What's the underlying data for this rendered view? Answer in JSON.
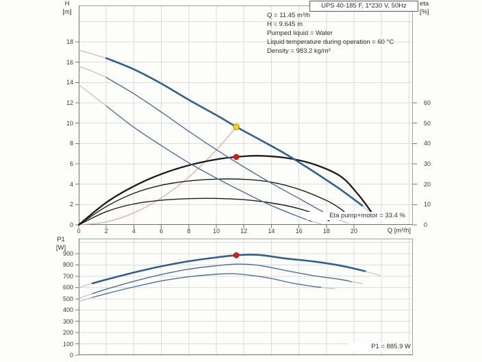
{
  "title_box": "UPS 40-185 F, 1*230 V, 50Hz",
  "info_lines": [
    "Q = 11.45 m³/h",
    "H = 9.645 m",
    "Pumped liquid = Water",
    "Liquid temperature during operation = 60 °C",
    "Density = 983.2 kg/m³"
  ],
  "axis_labels": {
    "h_name": "H",
    "h_unit": "[m]",
    "eta_name": "eta",
    "eta_unit": "[%]",
    "q_label": "Q [m³/h]",
    "p1_name": "P1",
    "p1_unit": "[W]"
  },
  "annotations": {
    "eta": "Eta pump+motor = 33.4 %",
    "p1": "P1 = 885.9 W"
  },
  "duty_point": {
    "q_m3h": 11.45,
    "h_m": 9.645,
    "eta_pct": 33.4,
    "p1_w": 885.9
  },
  "colors": {
    "grid": "#d8dce0",
    "frame": "#9aa0a4",
    "axis": "#6a6f73",
    "tick": "#777777",
    "curve_blue_thick": "#2e618f",
    "curve_blue_thin": "#47719c",
    "curve_black": "#1b1b1b",
    "system_red": "#e59598",
    "tail_gray": "#b7bdc2",
    "duty_yellow": "#ffd400",
    "duty_red": "#ee1312"
  },
  "chart_data": [
    {
      "id": "top",
      "type": "line",
      "x_label": "Q [m³/h]",
      "y_label": "H [m]",
      "y2_label": "eta [%]",
      "xlim": [
        0,
        24.28
      ],
      "ylim": [
        0,
        21.58
      ],
      "y2lim": [
        0,
        107.9
      ],
      "x_ticks": [
        0,
        2,
        4,
        6,
        8,
        10,
        12,
        14,
        16,
        18,
        20
      ],
      "x_grid": [
        2,
        4,
        6,
        8,
        10,
        12,
        14,
        16,
        18,
        20,
        22,
        24
      ],
      "y_ticks": [
        0,
        2,
        4,
        6,
        8,
        10,
        12,
        14,
        16,
        18
      ],
      "y_grid": [
        2,
        4,
        6,
        8,
        10,
        12,
        14,
        16,
        18,
        20
      ],
      "y2_ticks": [
        0,
        10,
        20,
        30,
        40,
        50,
        60
      ],
      "series": [
        {
          "name": "head-curve-speed3-tail-start",
          "color": "#b7bdc2",
          "width": 1.2,
          "axis": "y",
          "points": [
            [
              0,
              17.2
            ],
            [
              1,
              16.8
            ],
            [
              2,
              16.4
            ]
          ]
        },
        {
          "name": "head-curve-speed2-tail-start",
          "color": "#b7bdc2",
          "width": 1.1,
          "axis": "y",
          "points": [
            [
              0,
              15.6
            ],
            [
              1,
              15.1
            ],
            [
              2,
              14.5
            ]
          ]
        },
        {
          "name": "head-curve-speed1-tail-start",
          "color": "#b7bdc2",
          "width": 1.1,
          "axis": "y",
          "points": [
            [
              0,
              13.8
            ],
            [
              1,
              12.75
            ],
            [
              2,
              11.7
            ]
          ]
        },
        {
          "name": "head-curve-speed3-tail-end",
          "color": "#b7bdc2",
          "width": 1.1,
          "axis": "y",
          "points": [
            [
              20.6,
              1.9
            ],
            [
              21.5,
              0.8
            ]
          ]
        },
        {
          "name": "head-curve-speed2-tail-end",
          "color": "#b7bdc2",
          "width": 1.1,
          "axis": "y",
          "points": [
            [
              19,
              0.45
            ],
            [
              19.6,
              0.15
            ]
          ]
        },
        {
          "name": "head-curve-speed1-tail-end",
          "color": "#b7bdc2",
          "width": 1.1,
          "axis": "y",
          "points": [
            [
              16.9,
              0.35
            ],
            [
              17.6,
              0.1
            ]
          ]
        },
        {
          "name": "system-curve",
          "color": "#e59598",
          "width": 1,
          "axis": "y",
          "points": [
            [
              0,
              0
            ],
            [
              2,
              0.29
            ],
            [
              4,
              1.18
            ],
            [
              6,
              2.65
            ],
            [
              8,
              4.71
            ],
            [
              10,
              7.36
            ],
            [
              11.45,
              9.645
            ]
          ]
        },
        {
          "name": "eta-curve-speed1",
          "color": "#1b1b1b",
          "width": 1.4,
          "axis": "y2",
          "points": [
            [
              0,
              0
            ],
            [
              2,
              6.5
            ],
            [
              4,
              10.3
            ],
            [
              6,
              12.1
            ],
            [
              8,
              12.9
            ],
            [
              10,
              13
            ],
            [
              12,
              12.4
            ],
            [
              14,
              10.8
            ],
            [
              16,
              8
            ],
            [
              17.5,
              4.5
            ],
            [
              18.2,
              2
            ]
          ]
        },
        {
          "name": "eta-curve-speed2",
          "color": "#1b1b1b",
          "width": 1.4,
          "axis": "y2",
          "points": [
            [
              0,
              0
            ],
            [
              2,
              9
            ],
            [
              4,
              15.5
            ],
            [
              6,
              19.5
            ],
            [
              8,
              21.6
            ],
            [
              10,
              22.5
            ],
            [
              12,
              22.4
            ],
            [
              14,
              21
            ],
            [
              16,
              17.5
            ],
            [
              18,
              12
            ],
            [
              19,
              8
            ],
            [
              19.7,
              4
            ]
          ]
        },
        {
          "name": "eta-curve-speed3",
          "color": "#1b1b1b",
          "width": 2.3,
          "axis": "y2",
          "points": [
            [
              0,
              0
            ],
            [
              2,
              11
            ],
            [
              4,
              19
            ],
            [
              6,
              25
            ],
            [
              8,
              29.3
            ],
            [
              10,
              32.2
            ],
            [
              11.45,
              33.4
            ],
            [
              13,
              34
            ],
            [
              15,
              33
            ],
            [
              17,
              30
            ],
            [
              19,
              24
            ],
            [
              20.3,
              15
            ],
            [
              21.3,
              6
            ]
          ]
        },
        {
          "name": "head-curve-speed1",
          "color": "#47719c",
          "width": 1.4,
          "axis": "y",
          "points": [
            [
              2,
              11.7
            ],
            [
              4,
              9.6
            ],
            [
              6,
              7.8
            ],
            [
              8,
              6.1
            ],
            [
              10,
              4.6
            ],
            [
              12,
              3.2
            ],
            [
              14,
              1.9
            ],
            [
              16,
              0.8
            ],
            [
              16.9,
              0.35
            ]
          ]
        },
        {
          "name": "head-curve-speed2",
          "color": "#47719c",
          "width": 1.4,
          "axis": "y",
          "points": [
            [
              2,
              14.5
            ],
            [
              4,
              12.9
            ],
            [
              6,
              11.1
            ],
            [
              8,
              9.2
            ],
            [
              10,
              7.4
            ],
            [
              12,
              5.7
            ],
            [
              14,
              4.1
            ],
            [
              16,
              2.6
            ],
            [
              18,
              1.1
            ],
            [
              19,
              0.45
            ]
          ]
        },
        {
          "name": "head-curve-speed3",
          "color": "#2e618f",
          "width": 2.6,
          "axis": "y",
          "points": [
            [
              2,
              16.4
            ],
            [
              4,
              15.3
            ],
            [
              6,
              13.9
            ],
            [
              8,
              12.3
            ],
            [
              10,
              10.8
            ],
            [
              11.45,
              9.645
            ],
            [
              13,
              8.5
            ],
            [
              15,
              7.0
            ],
            [
              17,
              5.3
            ],
            [
              19,
              3.5
            ],
            [
              20.6,
              1.9
            ]
          ]
        }
      ],
      "markers": [
        {
          "name": "duty-point-qh",
          "q": 11.45,
          "v": 9.645,
          "axis": "y",
          "fill": "#ffd400",
          "stroke": "#bd8f16",
          "r": 4.2
        },
        {
          "name": "duty-point-eta",
          "q": 11.45,
          "v": 33.4,
          "axis": "y2",
          "fill": "#ee1312",
          "stroke": "#9e1a18",
          "r": 3.8
        }
      ]
    },
    {
      "id": "bottom",
      "type": "line",
      "x_label": "",
      "y_label": "P1 [W]",
      "xlim": [
        0,
        24.28
      ],
      "ylim": [
        0,
        1034
      ],
      "x_ticks": [],
      "x_grid": [
        2,
        4,
        6,
        8,
        10,
        12,
        14,
        16,
        18,
        20,
        22,
        24
      ],
      "y_ticks": [
        0,
        100,
        200,
        300,
        400,
        500,
        600,
        700,
        800,
        900
      ],
      "y_grid": [
        100,
        200,
        300,
        400,
        500,
        600,
        700,
        800,
        900,
        1000
      ],
      "series": [
        {
          "name": "p1-curve-speed3-tail-start",
          "color": "#b7bdc2",
          "width": 1.1,
          "axis": "y",
          "points": [
            [
              0,
              600
            ],
            [
              1,
              637
            ]
          ]
        },
        {
          "name": "p1-curve-speed2-tail-start",
          "color": "#b7bdc2",
          "width": 1.1,
          "axis": "y",
          "points": [
            [
              0,
              505
            ],
            [
              1,
              546
            ]
          ]
        },
        {
          "name": "p1-curve-speed1-tail-start",
          "color": "#b7bdc2",
          "width": 1.1,
          "axis": "y",
          "points": [
            [
              0,
              475
            ],
            [
              1,
              512
            ]
          ]
        },
        {
          "name": "p1-curve-speed3-tail-end",
          "color": "#b7bdc2",
          "width": 1.1,
          "axis": "y",
          "points": [
            [
              20.8,
              745
            ],
            [
              21.9,
              706
            ]
          ]
        },
        {
          "name": "p1-curve-speed2-tail-end",
          "color": "#b7bdc2",
          "width": 1.1,
          "axis": "y",
          "points": [
            [
              19.8,
              652
            ],
            [
              20.6,
              635
            ]
          ]
        },
        {
          "name": "p1-curve-speed1-tail-end",
          "color": "#b7bdc2",
          "width": 1.1,
          "axis": "y",
          "points": [
            [
              17.6,
              602
            ],
            [
              18.6,
              588
            ]
          ]
        },
        {
          "name": "p1-curve-speed1",
          "color": "#47719c",
          "width": 1.4,
          "axis": "y",
          "points": [
            [
              1,
              512
            ],
            [
              2,
              545
            ],
            [
              4,
              605
            ],
            [
              6,
              658
            ],
            [
              8,
              695
            ],
            [
              10,
              718
            ],
            [
              11.3,
              722
            ],
            [
              12.5,
              708
            ],
            [
              14,
              680
            ],
            [
              15.5,
              640
            ],
            [
              17,
              610
            ],
            [
              17.6,
              602
            ]
          ]
        },
        {
          "name": "p1-curve-speed2",
          "color": "#47719c",
          "width": 1.4,
          "axis": "y",
          "points": [
            [
              1,
              546
            ],
            [
              2,
              585
            ],
            [
              4,
              655
            ],
            [
              6,
              715
            ],
            [
              8,
              763
            ],
            [
              10,
              793
            ],
            [
              11.5,
              808
            ],
            [
              13,
              798
            ],
            [
              15,
              752
            ],
            [
              17,
              706
            ],
            [
              19,
              672
            ],
            [
              19.8,
              652
            ]
          ]
        },
        {
          "name": "p1-curve-speed3",
          "color": "#2e618f",
          "width": 2.6,
          "axis": "y",
          "points": [
            [
              1,
              637
            ],
            [
              2,
              670
            ],
            [
              4,
              733
            ],
            [
              6,
              788
            ],
            [
              8,
              833
            ],
            [
              10,
              867
            ],
            [
              11.45,
              886
            ],
            [
              13,
              890
            ],
            [
              15,
              858
            ],
            [
              17,
              832
            ],
            [
              19,
              795
            ],
            [
              20.8,
              745
            ]
          ]
        }
      ],
      "markers": [
        {
          "name": "duty-point-p1",
          "q": 11.45,
          "v": 885.9,
          "axis": "y",
          "fill": "#ee1312",
          "stroke": "#9e1a18",
          "r": 3.8
        }
      ]
    }
  ]
}
